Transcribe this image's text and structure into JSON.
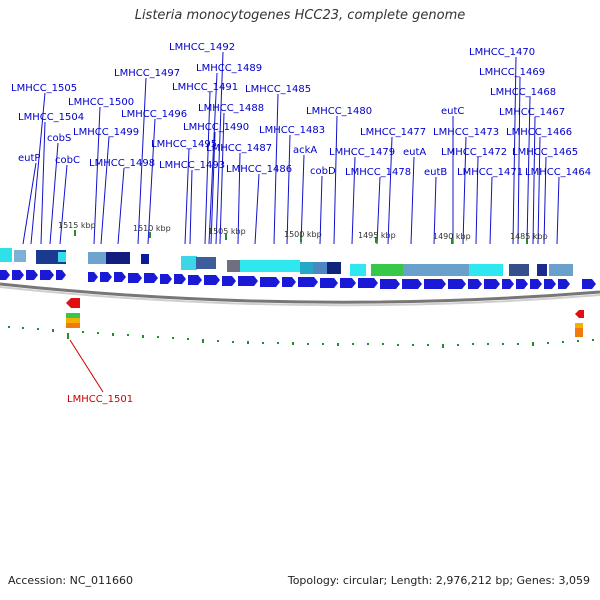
{
  "title": "Listeria monocytogenes HCC23, complete genome",
  "footer": {
    "accession": "Accession: NC_011660",
    "summary": "Topology: circular; Length: 2,976,212 bp; Genes: 3,059"
  },
  "colors": {
    "gene_label": "#0000cc",
    "inner_label": "#cc0000",
    "forward_gene": "#1a1ad6",
    "reverse_gene": "#e01010",
    "backbone": "#777777",
    "gc_skew": "#2a8a2a"
  },
  "ticks": [
    {
      "label": "1515 kbp"
    },
    {
      "label": "1510 kbp"
    },
    {
      "label": "1505 kbp"
    },
    {
      "label": "1500 kbp"
    },
    {
      "label": "1495 kbp"
    },
    {
      "label": "1490 kbp"
    },
    {
      "label": "1485 kbp"
    }
  ],
  "outer_labels": [
    "LMHCC_1492",
    "LMHCC_1470",
    "LMHCC_1497",
    "LMHCC_1489",
    "LMHCC_1469",
    "LMHCC_1505",
    "LMHCC_1491",
    "LMHCC_1485",
    "LMHCC_1468",
    "LMHCC_1500",
    "LMHCC_1496",
    "LMHCC_1488",
    "LMHCC_1480",
    "LMHCC_1504",
    "eutC",
    "LMHCC_1467",
    "LMHCC_1499",
    "LMHCC_1490",
    "LMHCC_1483",
    "LMHCC_1477",
    "LMHCC_1473",
    "LMHCC_1466",
    "cobS",
    "LMHCC_1495",
    "LMHCC_1487",
    "ackA",
    "eutP",
    "cobC",
    "LMHCC_1498",
    "LMHCC_1493",
    "LMHCC_1479",
    "eutA",
    "LMHCC_1472",
    "LMHCC_1465",
    "LMHCC_1486",
    "cobD",
    "LMHCC_1478",
    "eutB",
    "LMHCC_1471",
    "LMHCC_1464"
  ],
  "inner_labels": [
    "LMHCC_1501"
  ]
}
